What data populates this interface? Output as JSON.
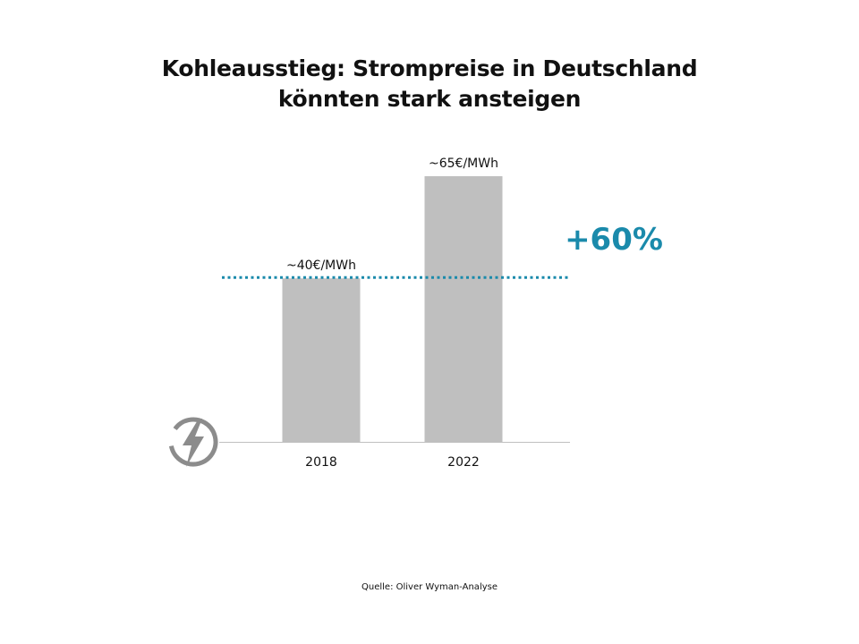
{
  "title": {
    "line1": "Kohleausstieg: Strompreise in Deutschland",
    "line2": "könnten stark ansteigen"
  },
  "source": "Quelle: Oliver Wyman-Analyse",
  "icon": "lightning-bolt-icon",
  "colors": {
    "bar": "#bfbfbf",
    "accent": "#1a8aab",
    "axis": "#bfbfbf",
    "icon": "#8c8c8c"
  },
  "chart_data": {
    "type": "bar",
    "title": "Kohleausstieg: Strompreise in Deutschland könnten stark ansteigen",
    "categories": [
      "2018",
      "2022"
    ],
    "values": [
      40,
      65
    ],
    "unit": "€/MWh",
    "data_labels": [
      "~40€/MWh",
      "~65€/MWh"
    ],
    "reference_line": {
      "value": 40,
      "style": "dotted"
    },
    "annotation": "+60%",
    "xlabel": "",
    "ylabel": "",
    "ylim": [
      0,
      65
    ],
    "grid": false,
    "legend": "none"
  }
}
